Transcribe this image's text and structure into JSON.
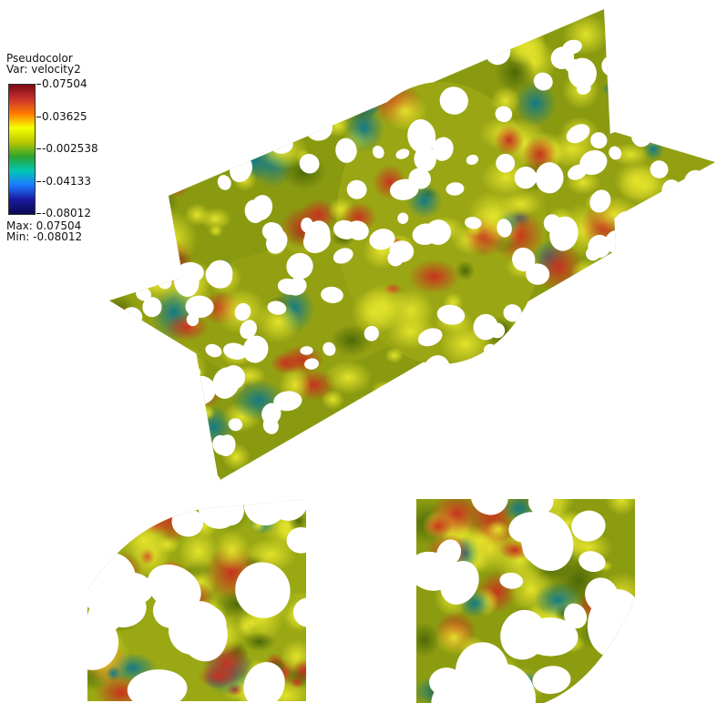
{
  "legend": {
    "plot_type": "Pseudocolor",
    "var_label": "Var: velocity2",
    "ticks": [
      "0.07504",
      "0.03625",
      "-0.002538",
      "-0.04133",
      "-0.08012"
    ],
    "max_label": "Max:  0.07504",
    "min_label": "Min: -0.08012",
    "colormap": [
      "#7a0a14",
      "#c8322d",
      "#ff7a00",
      "#f4ff00",
      "#b9c800",
      "#2ea32e",
      "#00c8b4",
      "#1c78ff",
      "#1a1aa0",
      "#0a0a50"
    ]
  },
  "colors": {
    "base_field": "#8a9a10",
    "highlight_field": "#b8bf1a",
    "hot_blob": "#c03a20",
    "cold_blob": "#1e8a7a",
    "holes": "#ffffff"
  }
}
